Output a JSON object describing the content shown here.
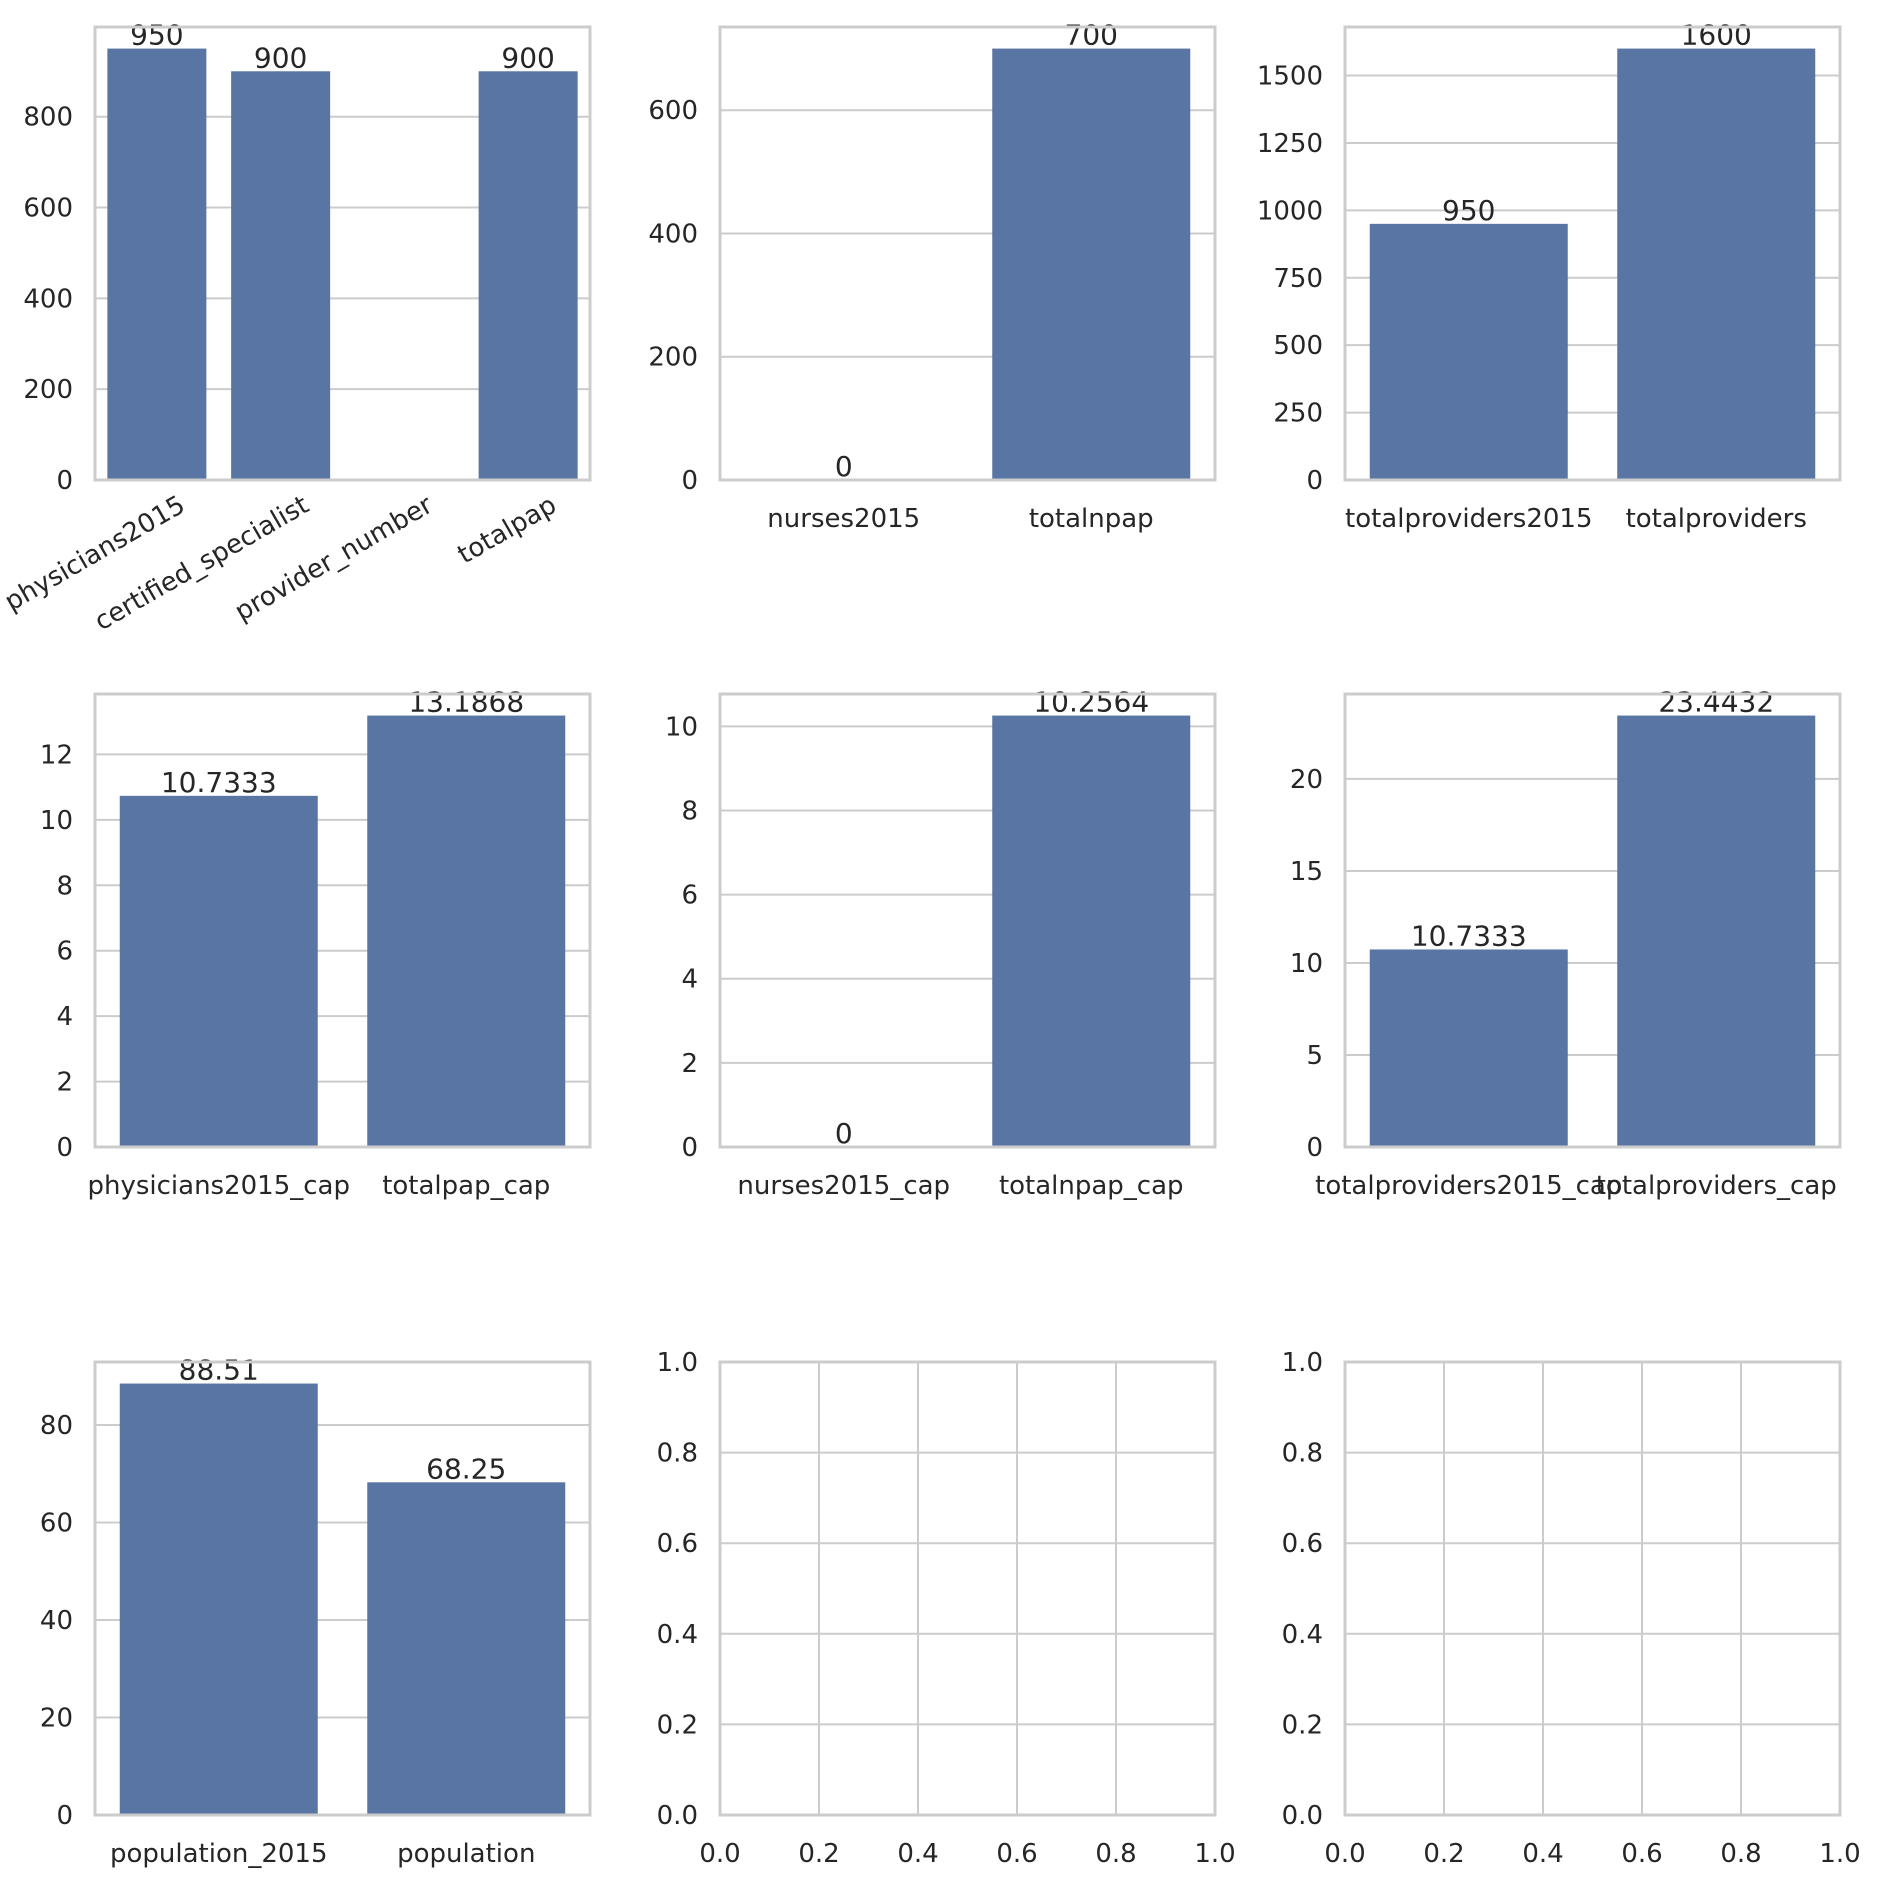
{
  "style": {
    "bar_color": "#5975a4",
    "grid_color": "#cccccc",
    "frame_color": "#cccccc",
    "text_color": "#262626",
    "background": "#ffffff"
  },
  "chart_data": [
    {
      "type": "bar",
      "categories": [
        "physicians2015",
        "certified_specialist",
        "provider_number",
        "totalpap"
      ],
      "values": [
        950,
        900,
        null,
        900
      ],
      "bar_labels": [
        "950",
        "900",
        "",
        "900"
      ],
      "ylim": [
        0,
        997.5
      ],
      "yticks": [
        0,
        200,
        400,
        600,
        800
      ],
      "xtick_rotation": 30,
      "grid": "y"
    },
    {
      "type": "bar",
      "categories": [
        "nurses2015",
        "totalnpap"
      ],
      "values": [
        0,
        700
      ],
      "bar_labels": [
        "0",
        "700"
      ],
      "ylim": [
        0,
        735
      ],
      "yticks": [
        0,
        200,
        400,
        600
      ],
      "grid": "y"
    },
    {
      "type": "bar",
      "categories": [
        "totalproviders2015",
        "totalproviders"
      ],
      "values": [
        950,
        1600
      ],
      "bar_labels": [
        "950",
        "1600"
      ],
      "ylim": [
        0,
        1680
      ],
      "yticks": [
        0,
        250,
        500,
        750,
        1000,
        1250,
        1500
      ],
      "grid": "y"
    },
    {
      "type": "bar",
      "categories": [
        "physicians2015_cap",
        "totalpap_cap"
      ],
      "values": [
        10.7333,
        13.1868
      ],
      "bar_labels": [
        "10.7333",
        "13.1868"
      ],
      "ylim": [
        0,
        13.846
      ],
      "yticks": [
        0,
        2,
        4,
        6,
        8,
        10,
        12
      ],
      "grid": "y"
    },
    {
      "type": "bar",
      "categories": [
        "nurses2015_cap",
        "totalnpap_cap"
      ],
      "values": [
        0,
        10.2564
      ],
      "bar_labels": [
        "0",
        "10.2564"
      ],
      "ylim": [
        0,
        10.769
      ],
      "yticks": [
        0,
        2,
        4,
        6,
        8,
        10
      ],
      "grid": "y"
    },
    {
      "type": "bar",
      "categories": [
        "totalproviders2015_cap",
        "totalproviders_cap"
      ],
      "values": [
        10.7333,
        23.4432
      ],
      "bar_labels": [
        "10.7333",
        "23.4432"
      ],
      "ylim": [
        0,
        24.615
      ],
      "yticks": [
        0,
        5,
        10,
        15,
        20
      ],
      "grid": "y"
    },
    {
      "type": "bar",
      "categories": [
        "population_2015",
        "population"
      ],
      "values": [
        88.51,
        68.25
      ],
      "bar_labels": [
        "88.51",
        "68.25"
      ],
      "ylim": [
        0,
        92.93
      ],
      "yticks": [
        0,
        20,
        40,
        60,
        80
      ],
      "grid": "y"
    },
    {
      "type": "empty",
      "xlim": [
        0,
        1
      ],
      "ylim": [
        0,
        1
      ],
      "xticks": [
        "0.0",
        "0.2",
        "0.4",
        "0.6",
        "0.8",
        "1.0"
      ],
      "yticks": [
        "0.0",
        "0.2",
        "0.4",
        "0.6",
        "0.8",
        "1.0"
      ],
      "grid": "both"
    },
    {
      "type": "empty",
      "xlim": [
        0,
        1
      ],
      "ylim": [
        0,
        1
      ],
      "xticks": [
        "0.0",
        "0.2",
        "0.4",
        "0.6",
        "0.8",
        "1.0"
      ],
      "yticks": [
        "0.0",
        "0.2",
        "0.4",
        "0.6",
        "0.8",
        "1.0"
      ],
      "grid": "both"
    }
  ]
}
